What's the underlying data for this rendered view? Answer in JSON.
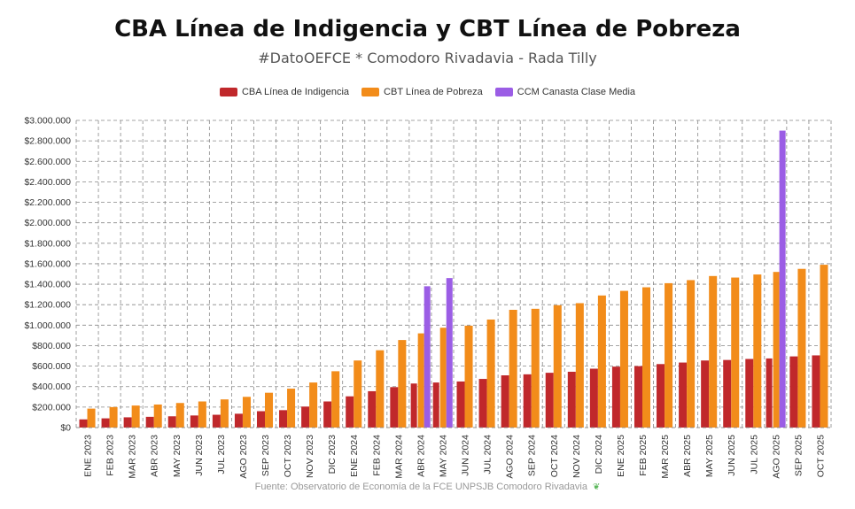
{
  "chart_data": {
    "type": "bar",
    "title": "CBA Línea de Indigencia y CBT Línea de Pobreza",
    "subtitle": "#DatoOEFCE * Comodoro Rivadavia - Rada Tilly",
    "source": "Fuente: Observatorio de Economía de la FCE UNPSJB Comodoro Rivadavia",
    "ylim": [
      0,
      3000000
    ],
    "yticks": [
      0,
      200000,
      400000,
      600000,
      800000,
      1000000,
      1200000,
      1400000,
      1600000,
      1800000,
      2000000,
      2200000,
      2400000,
      2600000,
      2800000,
      3000000
    ],
    "ytick_labels": [
      "$0",
      "$200.000",
      "$400.000",
      "$600.000",
      "$800.000",
      "$1.000.000",
      "$1.200.000",
      "$1.400.000",
      "$1.600.000",
      "$1.800.000",
      "$2.000.000",
      "$2.200.000",
      "$2.400.000",
      "$2.600.000",
      "$2.800.000",
      "$3.000.000"
    ],
    "grid": true,
    "legend_position": "top-center",
    "categories": [
      "ENE 2023",
      "FEB 2023",
      "MAR 2023",
      "ABR 2023",
      "MAY 2023",
      "JUN 2023",
      "JUL 2023",
      "AGO 2023",
      "SEP 2023",
      "OCT 2023",
      "NOV 2023",
      "DIC 2023",
      "ENE 2024",
      "FEB 2024",
      "MAR 2024",
      "ABR 2024",
      "MAY 2024",
      "JUN 2024",
      "JUL 2024",
      "AGO 2024",
      "SEP 2024",
      "OCT 2024",
      "NOV 2024",
      "DIC 2024",
      "ENE 2025",
      "FEB 2025",
      "MAR 2025",
      "ABR 2025",
      "MAY 2025",
      "JUN 2025",
      "JUL 2025",
      "AGO 2025",
      "SEP 2025",
      "OCT 2025"
    ],
    "series": [
      {
        "name": "CBA Línea de Indigencia",
        "color": "#c0282b",
        "values": [
          80000,
          90000,
          100000,
          105000,
          110000,
          118000,
          125000,
          135000,
          160000,
          170000,
          205000,
          255000,
          305000,
          355000,
          395000,
          430000,
          440000,
          450000,
          475000,
          510000,
          520000,
          535000,
          545000,
          575000,
          595000,
          600000,
          620000,
          635000,
          655000,
          660000,
          670000,
          675000,
          695000,
          705000
        ]
      },
      {
        "name": "CBT Línea de Pobreza",
        "color": "#f28c1a",
        "values": [
          185000,
          200000,
          215000,
          225000,
          240000,
          255000,
          275000,
          300000,
          340000,
          380000,
          440000,
          550000,
          655000,
          755000,
          855000,
          920000,
          975000,
          995000,
          1055000,
          1150000,
          1160000,
          1195000,
          1215000,
          1290000,
          1335000,
          1370000,
          1410000,
          1440000,
          1480000,
          1465000,
          1495000,
          1520000,
          1550000,
          1590000
        ]
      },
      {
        "name": "CCM Canasta Clase Media",
        "color": "#9b5de5",
        "values": [
          null,
          null,
          null,
          null,
          null,
          null,
          null,
          null,
          null,
          null,
          null,
          null,
          null,
          null,
          null,
          1380000,
          1460000,
          null,
          null,
          null,
          null,
          null,
          null,
          null,
          null,
          null,
          null,
          null,
          null,
          null,
          null,
          2900000,
          null,
          null
        ]
      }
    ]
  }
}
